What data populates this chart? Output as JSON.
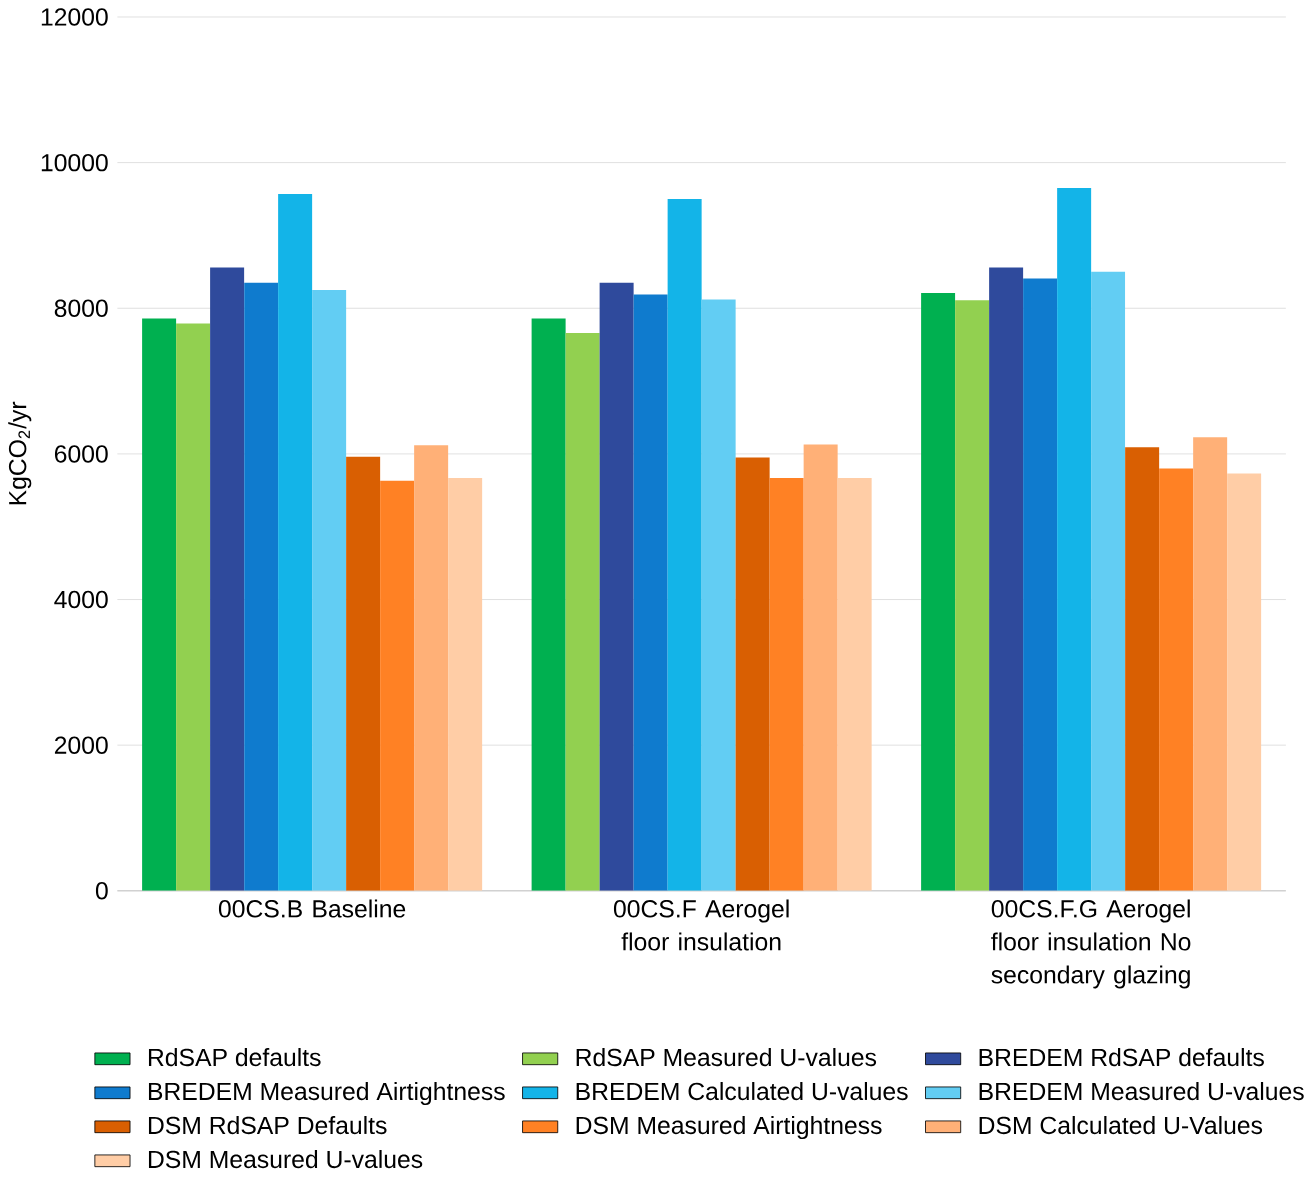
{
  "chart_data": {
    "type": "bar",
    "ylabel": "KgCO$_{2}$/yr",
    "categories": [
      "00CS.B Baseline",
      "00CS.F Aerogel floor insulation",
      "00CS.F.G Aerogel floor insulation No secondary glazing"
    ],
    "series": [
      {
        "name": "RdSAP defaults",
        "color": "#00b050",
        "values": [
          7860,
          7860,
          8210
        ]
      },
      {
        "name": "RdSAP Measured U-values",
        "color": "#92d050",
        "values": [
          7790,
          7660,
          8110
        ]
      },
      {
        "name": "BREDEM RdSAP defaults",
        "color": "#2f4a9c",
        "values": [
          8560,
          8350,
          8560
        ]
      },
      {
        "name": "BREDEM Measured Airtightness",
        "color": "#0f7bce",
        "values": [
          8350,
          8190,
          8410
        ]
      },
      {
        "name": "BREDEM Calculated U-values",
        "color": "#13b4e8",
        "values": [
          9570,
          9500,
          9650
        ]
      },
      {
        "name": "BREDEM Measured U-values",
        "color": "#62cdf3",
        "values": [
          8250,
          8120,
          8500
        ]
      },
      {
        "name": "DSM RdSAP Defaults",
        "color": "#d95f02",
        "values": [
          5960,
          5950,
          6090
        ]
      },
      {
        "name": "DSM Measured Airtightness",
        "color": "#ff8124",
        "values": [
          5630,
          5670,
          5800
        ]
      },
      {
        "name": "DSM Calculated U-Values",
        "color": "#ffb077",
        "values": [
          6120,
          6130,
          6230
        ]
      },
      {
        "name": "DSM Measured U-values",
        "color": "#ffcda6",
        "values": [
          5670,
          5670,
          5730
        ]
      }
    ],
    "ylim": [
      0,
      12000
    ],
    "yticks": [
      0,
      2000,
      4000,
      6000,
      8000,
      10000,
      12000
    ],
    "grid": "y",
    "legend": "bottom"
  }
}
